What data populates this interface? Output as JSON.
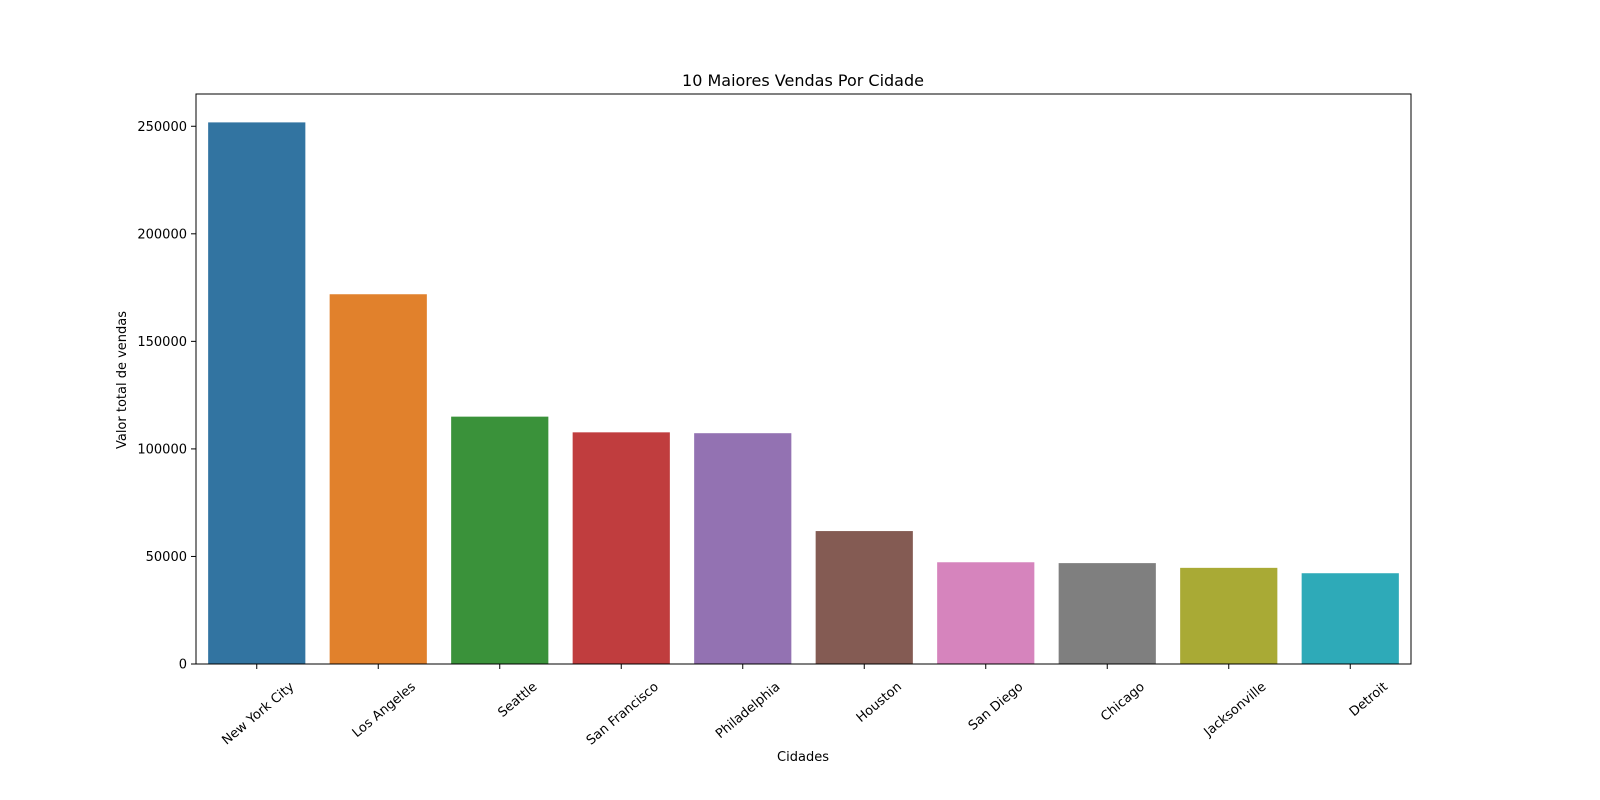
{
  "chart_data": {
    "type": "bar",
    "title": "10 Maiores Vendas Por Cidade",
    "xlabel": "Cidades",
    "ylabel": "Valor total de vendas",
    "categories": [
      "New York City",
      "Los Angeles",
      "Seattle",
      "San Francisco",
      "Philadelphia",
      "Houston",
      "San Diego",
      "Chicago",
      "Jacksonville",
      "Detroit"
    ],
    "values": [
      251800,
      171900,
      115000,
      107700,
      107300,
      61800,
      47300,
      46900,
      44700,
      42200
    ],
    "colors": [
      "#3274a1",
      "#e1812c",
      "#3a923a",
      "#c03d3e",
      "#9372b2",
      "#845b53",
      "#d684bd",
      "#7f7f7f",
      "#a9aa35",
      "#2eaab8"
    ],
    "ylim": [
      0,
      265000
    ],
    "yticks": [
      0,
      50000,
      100000,
      150000,
      200000,
      250000
    ],
    "ytick_labels": [
      "0",
      "50000",
      "100000",
      "150000",
      "200000",
      "250000"
    ],
    "grid": false,
    "legend": false
  }
}
